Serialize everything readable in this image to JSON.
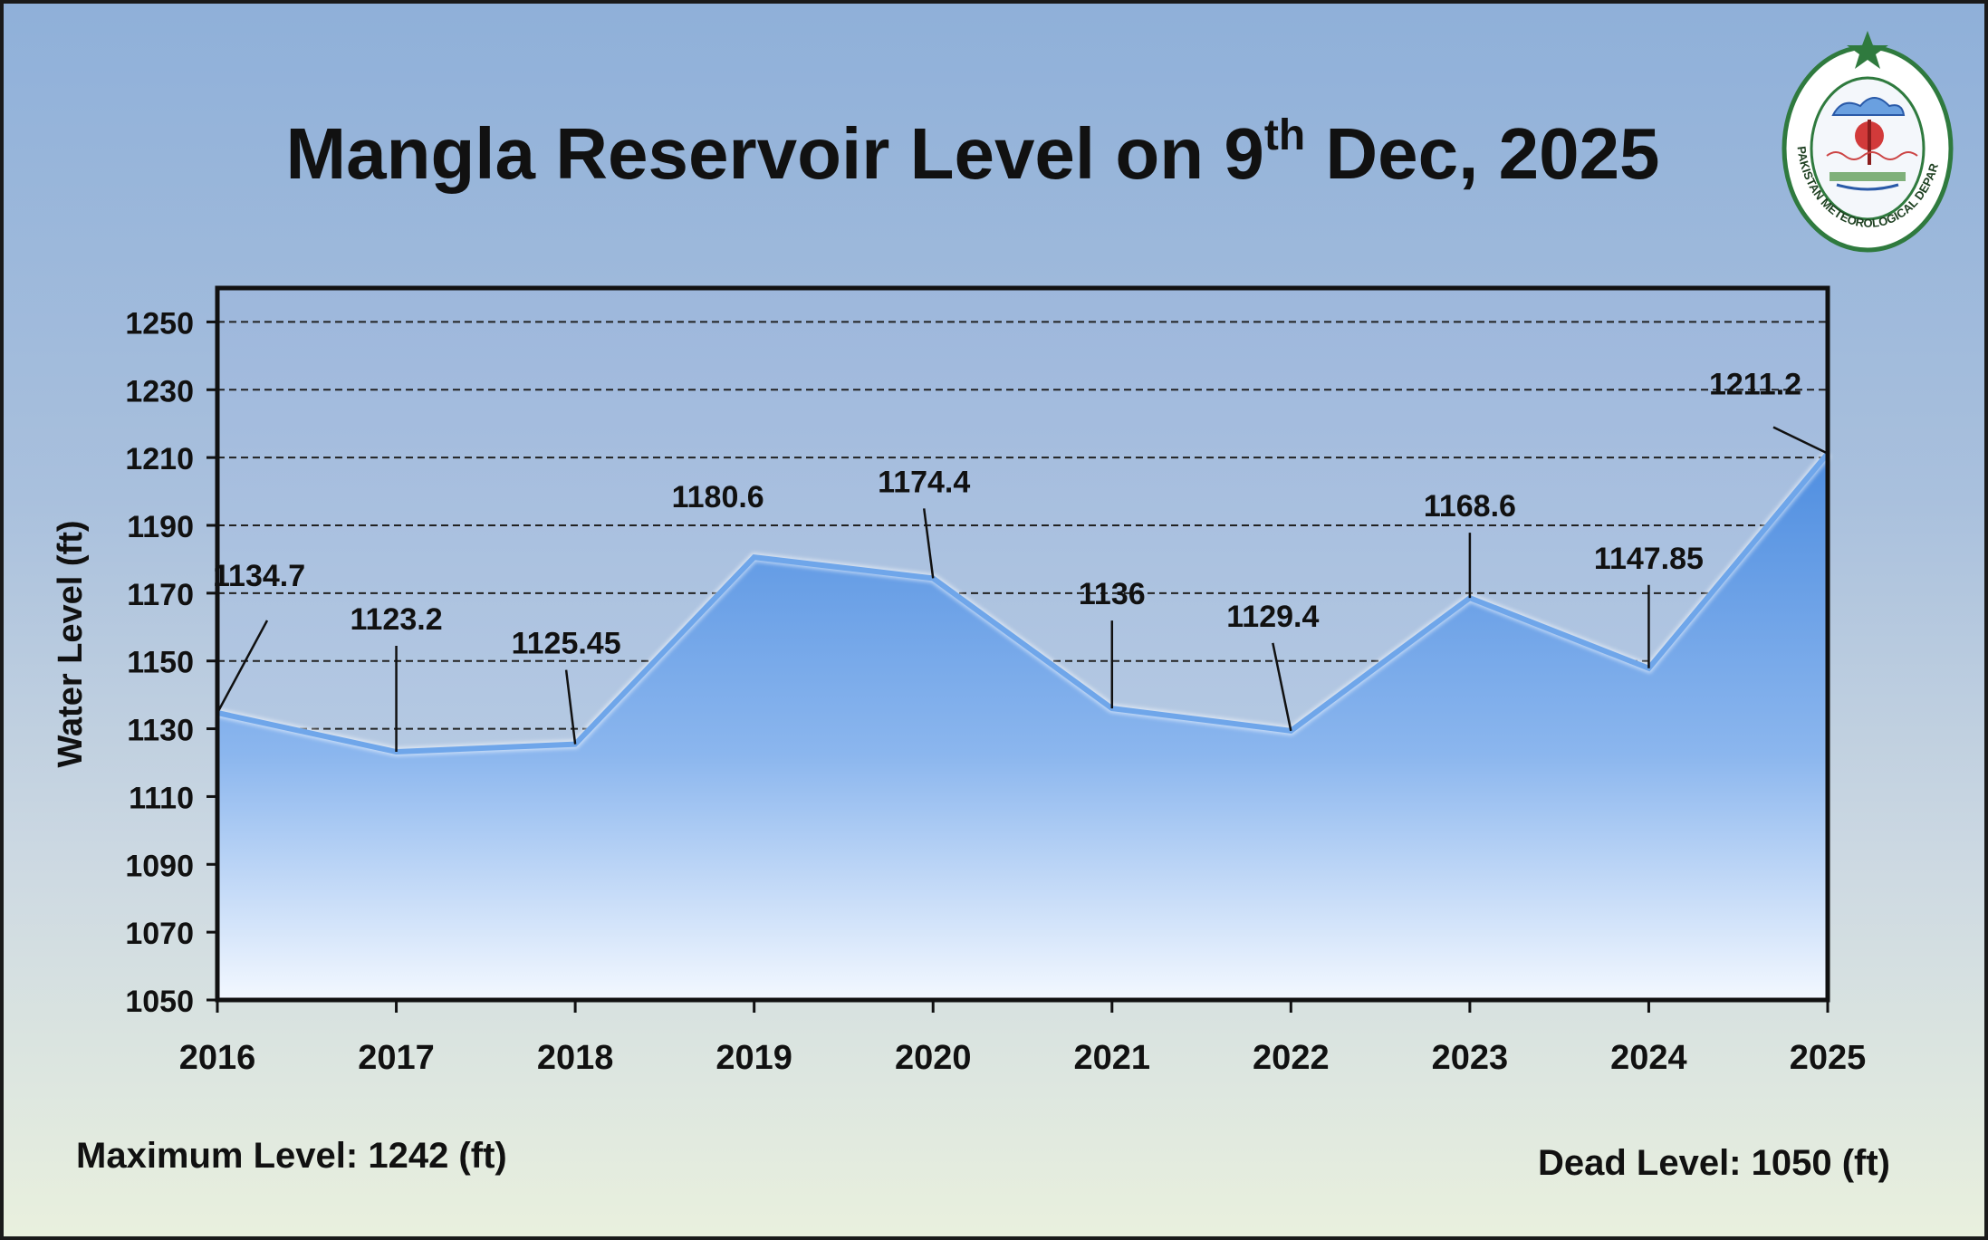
{
  "title": {
    "main": "Mangla Reservoir Level on 9",
    "sup": "th",
    "rest": " Dec, 2025"
  },
  "logo": {
    "text": "PAKISTAN METEOROLOGICAL DEPARTMENT",
    "icon": "pmd-emblem-icon"
  },
  "footer": {
    "max_level": "Maximum Level: 1242 (ft)",
    "dead_level": "Dead Level: 1050 (ft)"
  },
  "colors": {
    "area_top": "#4f8fe0",
    "area_bottom": "#f2f7ff",
    "line": "#6fa3e8",
    "grid": "#222222"
  },
  "chart_data": {
    "type": "area",
    "title": "Mangla Reservoir Level on 9th Dec, 2025",
    "xlabel": "",
    "ylabel": "Water Level (ft)",
    "categories": [
      "2016",
      "2017",
      "2018",
      "2019",
      "2020",
      "2021",
      "2022",
      "2023",
      "2024",
      "2025"
    ],
    "values": [
      1134.7,
      1123.2,
      1125.45,
      1180.6,
      1174.4,
      1136,
      1129.4,
      1168.6,
      1147.85,
      1211.2
    ],
    "labels": [
      "1134.7",
      "1123.2",
      "1125.45",
      "1180.6",
      "1174.4",
      "1136",
      "1129.4",
      "1168.6",
      "1147.85",
      "1211.2"
    ],
    "ylim": [
      1050,
      1260
    ],
    "yticks": [
      1050,
      1070,
      1090,
      1110,
      1130,
      1150,
      1170,
      1190,
      1210,
      1230,
      1250
    ],
    "grid": "dashed horizontal"
  }
}
